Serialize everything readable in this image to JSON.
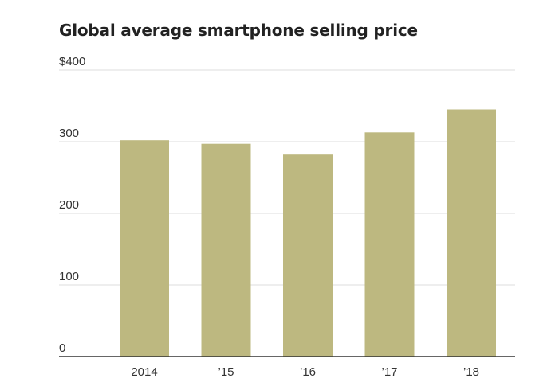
{
  "chart_data": {
    "type": "bar",
    "title": "Global average smartphone selling price",
    "categories": [
      "2014",
      "’15",
      "’16",
      "’17",
      "’18"
    ],
    "values": [
      302,
      297,
      282,
      313,
      345
    ],
    "y_ticks": [
      "0",
      "100",
      "200",
      "300",
      "$400"
    ],
    "y_tick_values": [
      0,
      100,
      200,
      300,
      400
    ],
    "ylim": [
      0,
      400
    ],
    "grid": true,
    "bar_color": "#bdb880",
    "grid_color": "#dedede",
    "axis_color": "#333333"
  }
}
